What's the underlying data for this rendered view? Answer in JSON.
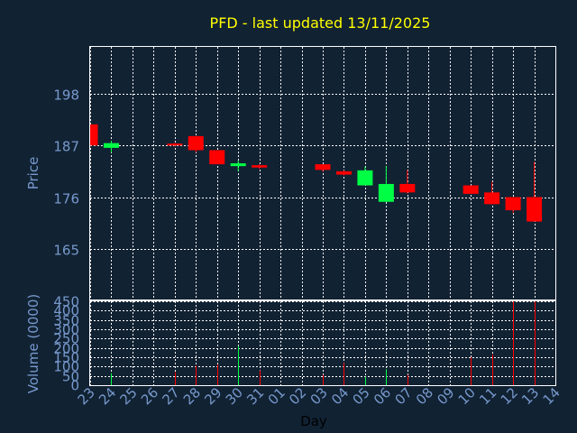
{
  "colors": {
    "background": "#112233",
    "plot_background": "#112233",
    "frame": "#ffffff",
    "grid": "#ffffff",
    "title": "#ffff00",
    "axis_text": "#7799cc",
    "up": "#00ff44",
    "down": "#ff0000"
  },
  "chart_data": [
    {
      "type": "candlestick",
      "title": "PFD - last updated 13/11/2025",
      "ylabel": "Price",
      "ylim": [
        154,
        208
      ],
      "yticks": [
        165,
        176,
        187,
        198
      ],
      "grid": true,
      "categories": [
        "23",
        "24",
        "25",
        "26",
        "27",
        "28",
        "29",
        "30",
        "31",
        "01",
        "02",
        "03",
        "04",
        "05",
        "06",
        "07",
        "08",
        "09",
        "10",
        "11",
        "12",
        "13",
        "14"
      ],
      "candles": [
        {
          "day": "23",
          "open": 191.5,
          "close": 187.0,
          "high": 191.5,
          "low": 187.0
        },
        {
          "day": "24",
          "open": 186.5,
          "close": 187.5,
          "high": 188.0,
          "low": 185.5
        },
        {
          "day": "27",
          "open": 187.4,
          "close": 187.0,
          "high": 187.6,
          "low": 186.8
        },
        {
          "day": "28",
          "open": 189.0,
          "close": 186.0,
          "high": 189.0,
          "low": 185.5
        },
        {
          "day": "29",
          "open": 186.0,
          "close": 183.0,
          "high": 186.0,
          "low": 183.0
        },
        {
          "day": "30",
          "open": 182.6,
          "close": 183.2,
          "high": 183.8,
          "low": 181.5
        },
        {
          "day": "31",
          "open": 182.8,
          "close": 182.3,
          "high": 183.0,
          "low": 182.0
        },
        {
          "day": "03",
          "open": 183.0,
          "close": 181.8,
          "high": 183.0,
          "low": 181.4
        },
        {
          "day": "04",
          "open": 181.5,
          "close": 180.8,
          "high": 181.7,
          "low": 180.6
        },
        {
          "day": "05",
          "open": 178.5,
          "close": 181.7,
          "high": 182.5,
          "low": 178.5
        },
        {
          "day": "06",
          "open": 175.0,
          "close": 178.8,
          "high": 182.6,
          "low": 175.0
        },
        {
          "day": "07",
          "open": 178.8,
          "close": 177.0,
          "high": 181.8,
          "low": 176.8
        },
        {
          "day": "10",
          "open": 178.5,
          "close": 176.7,
          "high": 178.5,
          "low": 176.7
        },
        {
          "day": "11",
          "open": 177.0,
          "close": 174.5,
          "high": 179.3,
          "low": 174.5
        },
        {
          "day": "12",
          "open": 176.0,
          "close": 173.2,
          "high": 176.0,
          "low": 172.6
        },
        {
          "day": "13",
          "open": 176.0,
          "close": 170.8,
          "high": 183.5,
          "low": 170.8
        }
      ]
    },
    {
      "type": "bar",
      "ylabel": "Volume (0000)",
      "xlabel": "Day",
      "ylim": [
        0,
        450
      ],
      "yticks": [
        0,
        50,
        100,
        150,
        200,
        250,
        300,
        350,
        400,
        450
      ],
      "grid": true,
      "categories": [
        "23",
        "24",
        "25",
        "26",
        "27",
        "28",
        "29",
        "30",
        "31",
        "01",
        "02",
        "03",
        "04",
        "05",
        "06",
        "07",
        "08",
        "09",
        "10",
        "11",
        "12",
        "13",
        "14"
      ],
      "bars": [
        {
          "day": "24",
          "value": 65,
          "direction": "up"
        },
        {
          "day": "27",
          "value": 70,
          "direction": "down"
        },
        {
          "day": "28",
          "value": 105,
          "direction": "down"
        },
        {
          "day": "29",
          "value": 110,
          "direction": "down"
        },
        {
          "day": "30",
          "value": 210,
          "direction": "up"
        },
        {
          "day": "31",
          "value": 80,
          "direction": "down"
        },
        {
          "day": "03",
          "value": 55,
          "direction": "down"
        },
        {
          "day": "04",
          "value": 120,
          "direction": "down"
        },
        {
          "day": "05",
          "value": 45,
          "direction": "up"
        },
        {
          "day": "06",
          "value": 85,
          "direction": "up"
        },
        {
          "day": "07",
          "value": 55,
          "direction": "down"
        },
        {
          "day": "10",
          "value": 150,
          "direction": "down"
        },
        {
          "day": "11",
          "value": 165,
          "direction": "down"
        },
        {
          "day": "12",
          "value": 450,
          "direction": "down"
        },
        {
          "day": "13",
          "value": 450,
          "direction": "down"
        }
      ]
    }
  ]
}
